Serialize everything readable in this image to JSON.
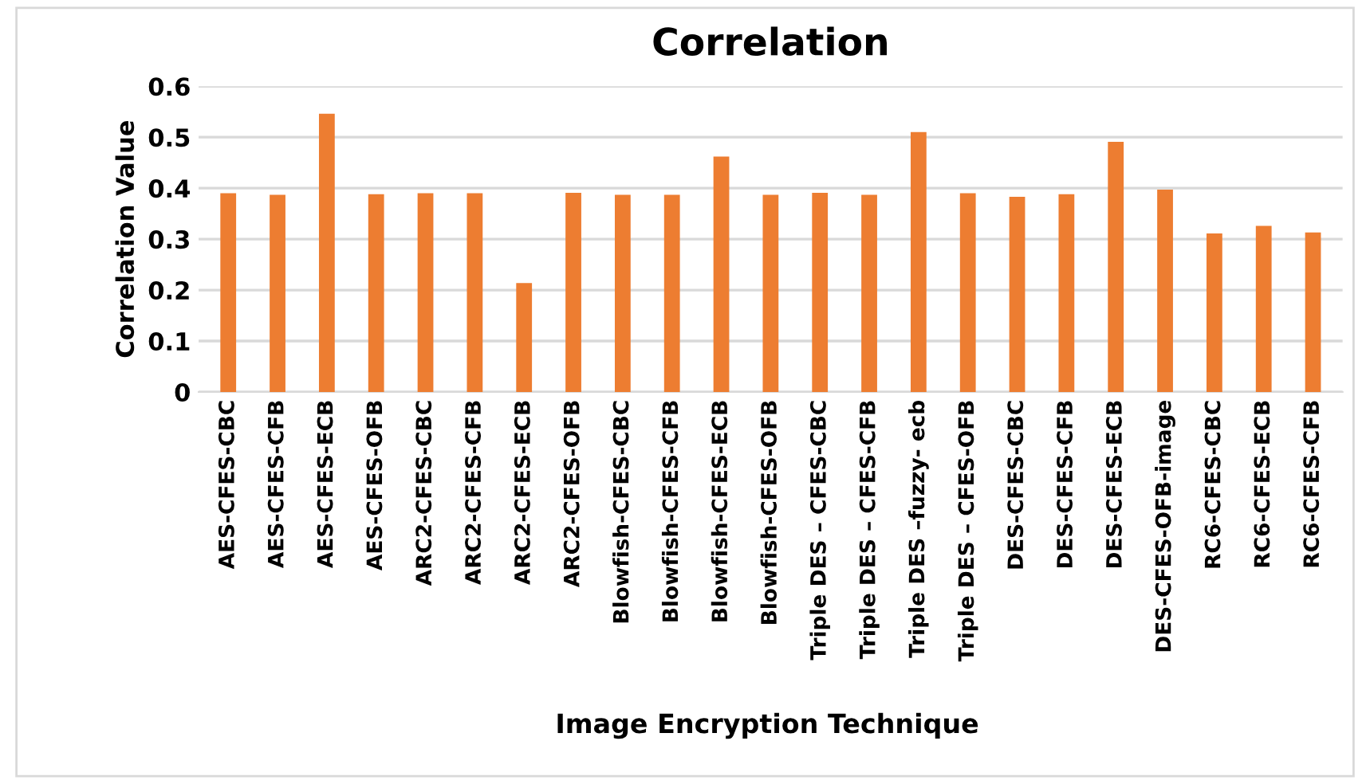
{
  "chart_data": {
    "type": "bar",
    "title": "Correlation",
    "xlabel": "Image Encryption Technique",
    "ylabel": "Correlation Value",
    "categories": [
      "AES-CFES-CBC",
      "AES-CFES-CFB",
      "AES-CFES-ECB",
      "AES-CFES-OFB",
      "ARC2-CFES-CBC",
      "ARC2-CFES-CFB",
      "ARC2-CFES-ECB",
      "ARC2-CFES-OFB",
      "Blowfish-CFES-CBC",
      "Blowfish-CFES-CFB",
      "Blowfish-CFES-ECB",
      "Blowfish-CFES-OFB",
      "Triple DES – CFES-CBC",
      "Triple DES – CFES-CFB",
      "Triple DES –fuzzy- ecb",
      "Triple DES – CFES-OFB",
      "DES-CFES-CBC",
      "DES-CFES-CFB",
      "DES-CFES-ECB",
      "DES-CFES-OFB-image",
      "RC6-CFES-CBC",
      "RC6-CFES-ECB",
      "RC6-CFES-CFB"
    ],
    "values": [
      0.39,
      0.387,
      0.546,
      0.388,
      0.39,
      0.39,
      0.214,
      0.391,
      0.387,
      0.387,
      0.462,
      0.387,
      0.391,
      0.387,
      0.51,
      0.39,
      0.383,
      0.388,
      0.491,
      0.397,
      0.311,
      0.326,
      0.313
    ],
    "color": "#ed7d31",
    "ylim": [
      0,
      0.6
    ],
    "yticks": [
      0,
      0.1,
      0.2,
      0.3,
      0.4,
      0.5,
      0.6
    ],
    "grid": "y",
    "legend": false
  }
}
